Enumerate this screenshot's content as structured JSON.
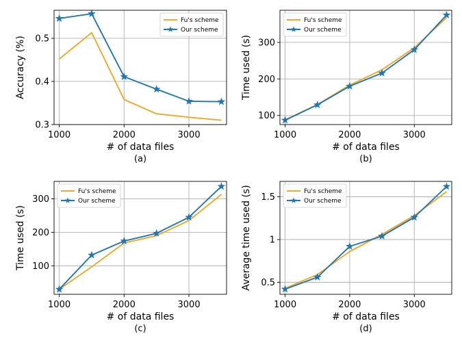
{
  "chart_data": [
    {
      "type": "line",
      "panel": "a",
      "caption": "(a)",
      "xlabel": "# of data files",
      "ylabel": "Accuracy (%)",
      "x": [
        1000,
        1500,
        2000,
        2500,
        3000,
        3500
      ],
      "xticks": [
        1000,
        2000,
        3000
      ],
      "yticks": [
        0.3,
        0.4,
        0.5
      ],
      "xlim": [
        920,
        3580
      ],
      "ylim": [
        0.3,
        0.565
      ],
      "grid": true,
      "legend": "top-right",
      "series": [
        {
          "name": "Fu's scheme",
          "color": "#f5a623",
          "marker": "none",
          "values": [
            0.452,
            0.513,
            0.358,
            0.325,
            0.317,
            0.31
          ]
        },
        {
          "name": "Our scheme",
          "color": "#1f77b4",
          "marker": "star",
          "values": [
            0.546,
            0.557,
            0.411,
            0.382,
            0.354,
            0.353
          ]
        }
      ]
    },
    {
      "type": "line",
      "panel": "b",
      "caption": "(b)",
      "xlabel": "# of data files",
      "ylabel": "Time used (s)",
      "x": [
        1000,
        1500,
        2000,
        2500,
        3000,
        3500
      ],
      "xticks": [
        1000,
        2000,
        3000
      ],
      "yticks": [
        100,
        200,
        300
      ],
      "xlim": [
        920,
        3580
      ],
      "ylim": [
        75,
        388
      ],
      "grid": true,
      "legend": "top-left",
      "series": [
        {
          "name": "Fu's scheme",
          "color": "#f5a623",
          "marker": "none",
          "values": [
            88,
            130,
            183,
            225,
            285,
            368
          ]
        },
        {
          "name": "Our scheme",
          "color": "#1f77b4",
          "marker": "star",
          "values": [
            87,
            129,
            180,
            216,
            280,
            375
          ]
        }
      ]
    },
    {
      "type": "line",
      "panel": "c",
      "caption": "(c)",
      "xlabel": "# of data files",
      "ylabel": "Time used (s)",
      "x": [
        1000,
        1500,
        2000,
        2500,
        3000,
        3500
      ],
      "xticks": [
        1000,
        2000,
        3000
      ],
      "yticks": [
        100,
        200,
        300
      ],
      "xlim": [
        920,
        3580
      ],
      "ylim": [
        15,
        352
      ],
      "grid": true,
      "legend": "top-left",
      "series": [
        {
          "name": "Fu's scheme",
          "color": "#f5a623",
          "marker": "none",
          "values": [
            30,
            97,
            168,
            190,
            235,
            313
          ]
        },
        {
          "name": "Our scheme",
          "color": "#1f77b4",
          "marker": "star",
          "values": [
            30,
            132,
            174,
            197,
            245,
            337
          ]
        }
      ]
    },
    {
      "type": "line",
      "panel": "d",
      "caption": "(d)",
      "xlabel": "# of data files",
      "ylabel": "Average time used (s)",
      "x": [
        1000,
        1500,
        2000,
        2500,
        3000,
        3500
      ],
      "xticks": [
        1000,
        2000,
        3000
      ],
      "yticks": [
        0.5,
        1.0,
        1.5
      ],
      "xlim": [
        920,
        3580
      ],
      "ylim": [
        0.36,
        1.68
      ],
      "grid": true,
      "legend": "top-left",
      "series": [
        {
          "name": "Fu's scheme",
          "color": "#f5a623",
          "marker": "none",
          "values": [
            0.43,
            0.59,
            0.86,
            1.06,
            1.28,
            1.56
          ]
        },
        {
          "name": "Our scheme",
          "color": "#1f77b4",
          "marker": "star",
          "values": [
            0.42,
            0.56,
            0.92,
            1.04,
            1.26,
            1.62
          ]
        }
      ]
    }
  ]
}
